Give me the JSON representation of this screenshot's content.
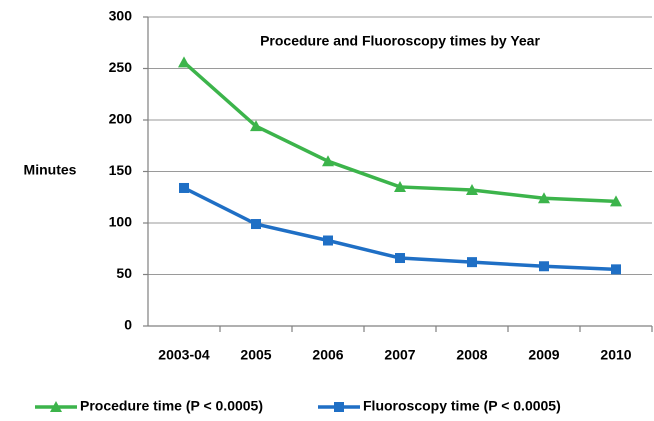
{
  "chart_data": {
    "type": "line",
    "title": "Procedure and Fluoroscopy times  by Year",
    "y_label": "Minutes",
    "categories": [
      "2003-04",
      "2005",
      "2006",
      "2007",
      "2008",
      "2009",
      "2010"
    ],
    "series": [
      {
        "name": "Procedure time (P < 0.0005)",
        "color": "#3cb44b",
        "marker": "triangle",
        "values": [
          256,
          194,
          160,
          135,
          132,
          124,
          121
        ]
      },
      {
        "name": "Fluoroscopy time (P < 0.0005)",
        "color": "#1f6fc5",
        "marker": "square",
        "values": [
          134,
          99,
          83,
          66,
          62,
          58,
          55
        ]
      }
    ],
    "ylim": [
      0,
      300
    ],
    "yticks": [
      0,
      50,
      100,
      150,
      200,
      250,
      300
    ],
    "grid": true,
    "legend": "bottom"
  }
}
